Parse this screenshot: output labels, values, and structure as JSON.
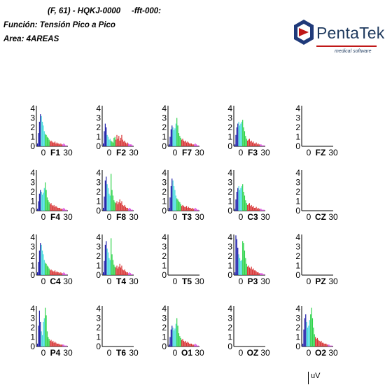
{
  "header": {
    "code": "(F, 61) - HQKJ-0000",
    "fft": "-fft-000:",
    "function": "Función: Tensión Pico a Pico",
    "area": "Area: 4AREAS"
  },
  "logo": {
    "name": "PentaTek",
    "subtitle": "medical software"
  },
  "unit": "uV",
  "colors": {
    "delta": "#1a1aa8",
    "theta": "#45dbdb",
    "alpha": "#2dd34a",
    "beta": "#d83434",
    "gamma": "#d84ad8"
  },
  "chart_data": {
    "type": "bar",
    "y_ticks": [
      "0",
      "1",
      "2",
      "3",
      "4"
    ],
    "ylim": [
      0,
      4
    ],
    "x_ticks": [
      "0",
      "30"
    ],
    "xlim": [
      0,
      30
    ],
    "bands": [
      {
        "name": "delta",
        "range": [
          0,
          3
        ]
      },
      {
        "name": "theta",
        "range": [
          4,
          7
        ]
      },
      {
        "name": "alpha",
        "range": [
          8,
          12
        ]
      },
      {
        "name": "beta",
        "range": [
          13,
          25
        ]
      },
      {
        "name": "gamma",
        "range": [
          26,
          30
        ]
      }
    ],
    "channels": [
      {
        "label": "F1",
        "style": 0
      },
      {
        "label": "F2",
        "style": 1
      },
      {
        "label": "F7",
        "style": 2
      },
      {
        "label": "F3",
        "style": 3
      },
      {
        "label": "FZ",
        "style": -1
      },
      {
        "label": "F4",
        "style": 2
      },
      {
        "label": "F8",
        "style": 4
      },
      {
        "label": "T3",
        "style": 0
      },
      {
        "label": "C3",
        "style": 3
      },
      {
        "label": "CZ",
        "style": -1
      },
      {
        "label": "C4",
        "style": 0
      },
      {
        "label": "T4",
        "style": 4
      },
      {
        "label": "T5",
        "style": -1
      },
      {
        "label": "P3",
        "style": 5
      },
      {
        "label": "PZ",
        "style": -1
      },
      {
        "label": "P4",
        "style": 6
      },
      {
        "label": "T6",
        "style": -1
      },
      {
        "label": "O1",
        "style": 2
      },
      {
        "label": "OZ",
        "style": -1
      },
      {
        "label": "O2",
        "style": 7
      }
    ],
    "spectra": [
      [
        0.3,
        1.4,
        2.6,
        3.4,
        3.2,
        2.6,
        2.2,
        1.6,
        1.3,
        1.2,
        1.0,
        0.9,
        0.7,
        0.5,
        0.6,
        0.5,
        0.4,
        0.4,
        0.5,
        0.3,
        0.4,
        0.3,
        0.3,
        0.2,
        0.3,
        0.2,
        0.2,
        0.3,
        0.2,
        0.1,
        0.1
      ],
      [
        0.3,
        1.6,
        2.4,
        2.0,
        1.2,
        1.0,
        0.7,
        0.8,
        0.6,
        0.5,
        0.4,
        0.9,
        1.0,
        0.7,
        1.2,
        0.8,
        1.1,
        0.6,
        0.9,
        1.2,
        0.7,
        0.5,
        0.6,
        0.4,
        0.3,
        0.4,
        0.3,
        0.2,
        0.2,
        0.2,
        0.1
      ],
      [
        0.2,
        1.0,
        1.8,
        2.2,
        2.0,
        1.7,
        1.9,
        2.4,
        3.0,
        2.2,
        1.4,
        1.1,
        0.9,
        0.7,
        0.8,
        0.6,
        0.5,
        0.6,
        0.4,
        0.5,
        0.4,
        0.3,
        0.3,
        0.3,
        0.2,
        0.2,
        0.2,
        0.3,
        0.2,
        0.1,
        0.1
      ],
      [
        0.2,
        1.2,
        2.0,
        2.4,
        2.6,
        2.2,
        2.4,
        2.6,
        2.8,
        2.0,
        1.6,
        1.1,
        0.8,
        0.6,
        0.7,
        0.8,
        0.5,
        0.6,
        0.4,
        0.5,
        0.3,
        0.3,
        0.4,
        0.2,
        0.3,
        0.2,
        0.2,
        0.2,
        0.1,
        0.1,
        0.1
      ],
      [
        0.3,
        1.5,
        3.2,
        3.6,
        2.8,
        2.4,
        1.8,
        1.6,
        3.9,
        2.2,
        1.6,
        1.1,
        0.9,
        0.8,
        1.0,
        0.7,
        0.9,
        1.2,
        0.8,
        1.0,
        0.6,
        0.5,
        0.6,
        0.4,
        0.3,
        0.3,
        0.2,
        0.3,
        0.2,
        0.1,
        0.1
      ],
      [
        0.3,
        4.2,
        3.8,
        2.9,
        2.2,
        1.8,
        1.5,
        1.6,
        3.6,
        3.4,
        2.6,
        1.8,
        1.2,
        0.9,
        1.0,
        0.8,
        0.7,
        0.9,
        0.6,
        0.7,
        0.5,
        0.5,
        0.4,
        0.3,
        0.3,
        0.2,
        0.2,
        0.2,
        0.2,
        0.1,
        0.1
      ],
      [
        0.3,
        2.2,
        3.8,
        2.6,
        1.6,
        1.2,
        2.6,
        3.0,
        4.1,
        3.3,
        1.6,
        1.0,
        0.8,
        0.6,
        0.7,
        0.5,
        0.6,
        0.4,
        0.5,
        0.4,
        0.3,
        0.3,
        0.3,
        0.2,
        0.2,
        0.2,
        0.2,
        0.2,
        0.1,
        0.1,
        0.1
      ],
      [
        0.3,
        1.8,
        3.0,
        3.4,
        2.6,
        2.0,
        2.2,
        2.8,
        3.4,
        4.1,
        3.0,
        2.0,
        1.3,
        1.0,
        0.8,
        0.9,
        0.7,
        0.6,
        0.5,
        0.6,
        0.4,
        0.4,
        0.3,
        0.3,
        0.3,
        0.2,
        0.2,
        0.2,
        0.1,
        0.1,
        0.1
      ]
    ]
  }
}
